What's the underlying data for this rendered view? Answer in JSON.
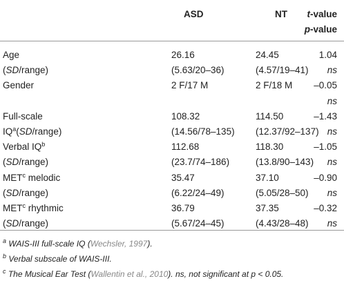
{
  "header": {
    "columns": [
      "ASD",
      "NT"
    ],
    "stat": [
      [
        {
          "text": "t",
          "style": "i"
        },
        {
          "text": "-value"
        }
      ],
      [
        {
          "text": "p",
          "style": "i"
        },
        {
          "text": "-value"
        }
      ]
    ]
  },
  "rows": [
    {
      "label": [
        {
          "text": "Age"
        }
      ],
      "asd": [
        {
          "text": "26.16"
        }
      ],
      "nt": [
        {
          "text": "24.45"
        }
      ],
      "t": [
        {
          "text": "1.04"
        }
      ]
    },
    {
      "label": [
        {
          "text": "("
        },
        {
          "text": "SD",
          "style": "i"
        },
        {
          "text": "/range)"
        }
      ],
      "asd": [
        {
          "text": "(5.63/20–36)"
        }
      ],
      "nt": [
        {
          "text": "(4.57/19–41)"
        }
      ],
      "t": [
        {
          "text": "ns",
          "style": "i"
        }
      ]
    },
    {
      "label": [
        {
          "text": "Gender"
        }
      ],
      "asd": [
        {
          "text": "2 F/17 M"
        }
      ],
      "nt": [
        {
          "text": "2 F/18 M"
        }
      ],
      "t": [
        {
          "text": "–0.05"
        }
      ]
    },
    {
      "t": [
        {
          "text": "ns",
          "style": "i"
        }
      ]
    },
    {
      "label": [
        {
          "text": "Full-scale"
        }
      ],
      "asd": [
        {
          "text": "108.32"
        }
      ],
      "nt": [
        {
          "text": "114.50"
        }
      ],
      "t": [
        {
          "text": "–1.43"
        }
      ]
    },
    {
      "label": [
        {
          "text": "IQ"
        },
        {
          "text": "a",
          "style": "sup"
        },
        {
          "text": "("
        },
        {
          "text": "SD",
          "style": "i"
        },
        {
          "text": "/range)"
        }
      ],
      "asd": [
        {
          "text": "(14.56/78–135)"
        }
      ],
      "nt": [
        {
          "text": "(12.37/92–137)"
        }
      ],
      "t": [
        {
          "text": "ns",
          "style": "i"
        }
      ]
    },
    {
      "label": [
        {
          "text": "Verbal IQ"
        },
        {
          "text": "b",
          "style": "sup"
        }
      ],
      "asd": [
        {
          "text": "112.68"
        }
      ],
      "nt": [
        {
          "text": "118.30"
        }
      ],
      "t": [
        {
          "text": "–1.05"
        }
      ]
    },
    {
      "label": [
        {
          "text": "("
        },
        {
          "text": "SD",
          "style": "i"
        },
        {
          "text": "/range)"
        }
      ],
      "asd": [
        {
          "text": "(23.7/74–186)"
        }
      ],
      "nt": [
        {
          "text": "(13.8/90–143)"
        }
      ],
      "t": [
        {
          "text": "ns",
          "style": "i"
        }
      ]
    },
    {
      "label": [
        {
          "text": "MET"
        },
        {
          "text": "c",
          "style": "sup"
        },
        {
          "text": " melodic"
        }
      ],
      "asd": [
        {
          "text": "35.47"
        }
      ],
      "nt": [
        {
          "text": "37.10"
        }
      ],
      "t": [
        {
          "text": "–0.90"
        }
      ]
    },
    {
      "label": [
        {
          "text": "("
        },
        {
          "text": "SD",
          "style": "i"
        },
        {
          "text": "/range)"
        }
      ],
      "asd": [
        {
          "text": "(6.22/24–49)"
        }
      ],
      "nt": [
        {
          "text": "(5.05/28–50)"
        }
      ],
      "t": [
        {
          "text": "ns",
          "style": "i"
        }
      ]
    },
    {
      "label": [
        {
          "text": "MET"
        },
        {
          "text": "c",
          "style": "sup"
        },
        {
          "text": " rhythmic"
        }
      ],
      "asd": [
        {
          "text": "36.79"
        }
      ],
      "nt": [
        {
          "text": "37.35"
        }
      ],
      "t": [
        {
          "text": "–0.32"
        }
      ]
    },
    {
      "label": [
        {
          "text": "("
        },
        {
          "text": "SD",
          "style": "i"
        },
        {
          "text": "/range)"
        }
      ],
      "asd": [
        {
          "text": "(5.67/24–45)"
        }
      ],
      "nt": [
        {
          "text": "(4.43/28–48)"
        }
      ],
      "t": [
        {
          "text": "ns",
          "style": "i"
        }
      ]
    }
  ],
  "footnotes": [
    [
      {
        "text": "a",
        "style": "sup"
      },
      {
        "text": " WAIS-III full-scale IQ ("
      },
      {
        "text": "Wechsler, 1997",
        "style": "link"
      },
      {
        "text": ")."
      }
    ],
    [
      {
        "text": "b",
        "style": "sup"
      },
      {
        "text": " Verbal subscale of WAIS-III."
      }
    ],
    [
      {
        "text": "c",
        "style": "sup"
      },
      {
        "text": " The Musical Ear Test ("
      },
      {
        "text": "Wallentin et al., 2010",
        "style": "link"
      },
      {
        "text": "). ns, not significant at p < 0.05."
      }
    ]
  ]
}
